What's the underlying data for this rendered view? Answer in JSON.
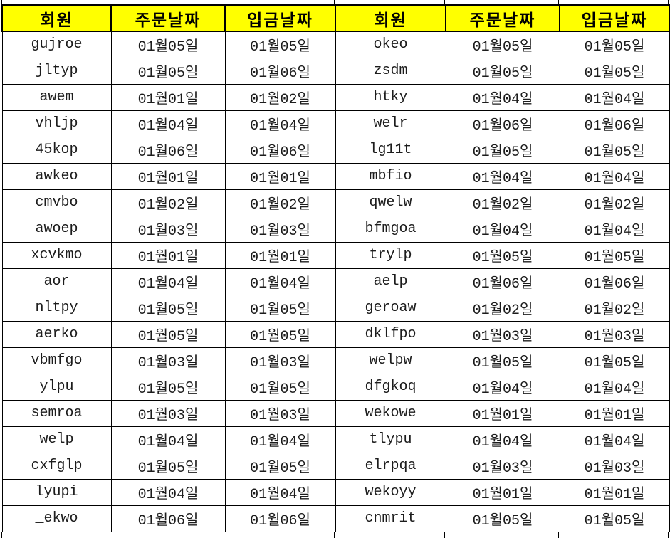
{
  "table": {
    "header_bg_color": "#FFFF00",
    "border_color": "#000000",
    "columns": [
      "회원",
      "주문날짜",
      "입금날짜",
      "회원",
      "주문날짜",
      "입금날짜"
    ],
    "rows": [
      [
        "gujroe",
        "01월05일",
        "01월05일",
        "okeo",
        "01월05일",
        "01월05일"
      ],
      [
        "jltyp",
        "01월05일",
        "01월06일",
        "zsdm",
        "01월05일",
        "01월05일"
      ],
      [
        "awem",
        "01월01일",
        "01월02일",
        "htky",
        "01월04일",
        "01월04일"
      ],
      [
        "vhljp",
        "01월04일",
        "01월04일",
        "welr",
        "01월06일",
        "01월06일"
      ],
      [
        "45kop",
        "01월06일",
        "01월06일",
        "lg11t",
        "01월05일",
        "01월05일"
      ],
      [
        "awkeo",
        "01월01일",
        "01월01일",
        "mbfio",
        "01월04일",
        "01월04일"
      ],
      [
        "cmvbo",
        "01월02일",
        "01월02일",
        "qwelw",
        "01월02일",
        "01월02일"
      ],
      [
        "awoep",
        "01월03일",
        "01월03일",
        "bfmgoa",
        "01월04일",
        "01월04일"
      ],
      [
        "xcvkmo",
        "01월01일",
        "01월01일",
        "trylp",
        "01월05일",
        "01월05일"
      ],
      [
        "aor",
        "01월04일",
        "01월04일",
        "aelp",
        "01월06일",
        "01월06일"
      ],
      [
        "nltpy",
        "01월05일",
        "01월05일",
        "geroaw",
        "01월02일",
        "01월02일"
      ],
      [
        "aerko",
        "01월05일",
        "01월05일",
        "dklfpo",
        "01월03일",
        "01월03일"
      ],
      [
        "vbmfgo",
        "01월03일",
        "01월03일",
        "welpw",
        "01월05일",
        "01월05일"
      ],
      [
        "ylpu",
        "01월05일",
        "01월05일",
        "dfgkoq",
        "01월04일",
        "01월04일"
      ],
      [
        "semroa",
        "01월03일",
        "01월03일",
        "wekowe",
        "01월01일",
        "01월01일"
      ],
      [
        "welp",
        "01월04일",
        "01월04일",
        "tlypu",
        "01월04일",
        "01월04일"
      ],
      [
        "cxfglp",
        "01월05일",
        "01월05일",
        "elrpqa",
        "01월03일",
        "01월03일"
      ],
      [
        "lyupi",
        "01월04일",
        "01월04일",
        "wekoyy",
        "01월01일",
        "01월01일"
      ],
      [
        "_ekwo",
        "01월06일",
        "01월06일",
        "cnmrit",
        "01월05일",
        "01월05일"
      ]
    ]
  }
}
